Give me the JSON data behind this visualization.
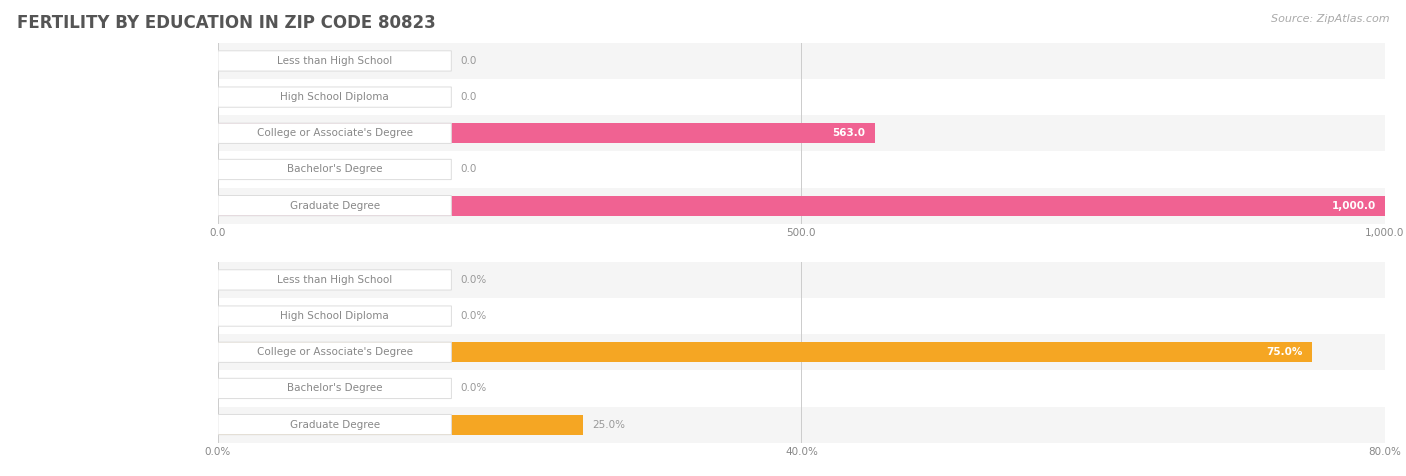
{
  "title": "FERTILITY BY EDUCATION IN ZIP CODE 80823",
  "source": "Source: ZipAtlas.com",
  "top_chart": {
    "categories": [
      "Less than High School",
      "High School Diploma",
      "College or Associate's Degree",
      "Bachelor's Degree",
      "Graduate Degree"
    ],
    "values": [
      0.0,
      0.0,
      563.0,
      0.0,
      1000.0
    ],
    "value_labels": [
      "0.0",
      "0.0",
      "563.0",
      "0.0",
      "1,000.0"
    ],
    "xlim": [
      0,
      1000.0
    ],
    "xticks": [
      0.0,
      500.0,
      1000.0
    ],
    "xtick_labels": [
      "0.0",
      "500.0",
      "1,000.0"
    ],
    "bar_color": "#f06292",
    "bar_light_color": "#f8bbd0",
    "label_color": "#888888",
    "value_inside_color": "#ffffff",
    "value_outside_color": "#999999",
    "row_bg_colors": [
      "#f5f5f5",
      "#ffffff"
    ]
  },
  "bottom_chart": {
    "categories": [
      "Less than High School",
      "High School Diploma",
      "College or Associate's Degree",
      "Bachelor's Degree",
      "Graduate Degree"
    ],
    "values": [
      0.0,
      0.0,
      75.0,
      0.0,
      25.0
    ],
    "value_labels": [
      "0.0%",
      "0.0%",
      "75.0%",
      "0.0%",
      "25.0%"
    ],
    "xlim": [
      0,
      80.0
    ],
    "xticks": [
      0.0,
      40.0,
      80.0
    ],
    "xtick_labels": [
      "0.0%",
      "40.0%",
      "80.0%"
    ],
    "bar_color": "#f5a623",
    "bar_light_color": "#fde9c3",
    "label_color": "#888888",
    "value_inside_color": "#ffffff",
    "value_outside_color": "#999999",
    "row_bg_colors": [
      "#f5f5f5",
      "#ffffff"
    ]
  },
  "background_color": "#ffffff",
  "title_color": "#555555",
  "title_fontsize": 12,
  "bar_height": 0.55,
  "label_fontsize": 7.5,
  "value_fontsize": 7.5,
  "source_fontsize": 8,
  "source_color": "#aaaaaa"
}
